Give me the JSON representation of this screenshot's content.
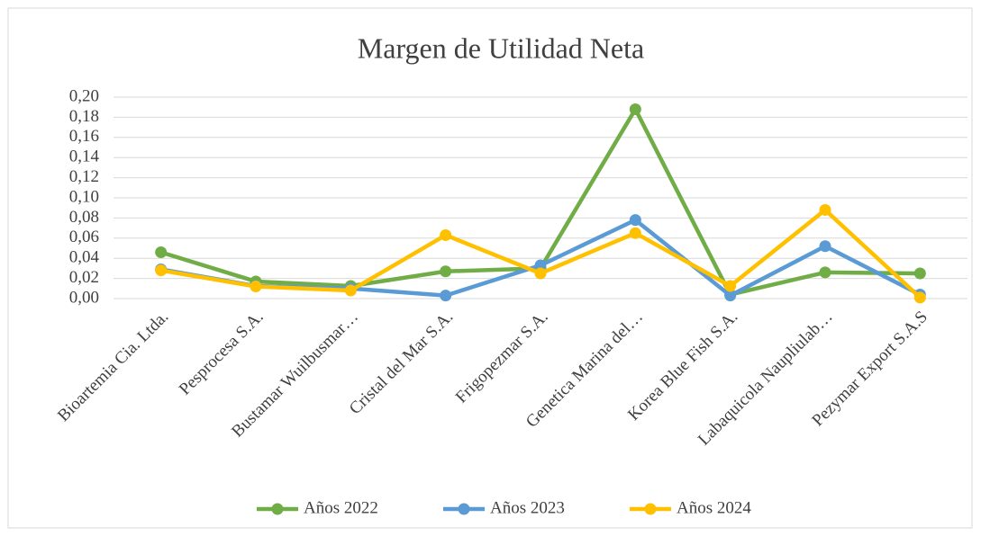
{
  "chart_data": {
    "type": "line",
    "title": "Margen de Utilidad Neta",
    "categories": [
      "Bioartemia Cia. Ltda.",
      "Pesprocesa S.A.",
      "Bustamar Wuilbusmar…",
      "Cristal del Mar S.A.",
      "Frigopezmar S.A.",
      "Genetica Marina del…",
      "Korea Blue Fish S.A.",
      "Labaquicola Naupliulab…",
      "Pezymar Export S.A.S"
    ],
    "series": [
      {
        "name": "Años 2022",
        "color": "#70ad47",
        "values": [
          0.046,
          0.017,
          0.0125,
          0.027,
          0.03,
          0.188,
          0.004,
          0.026,
          0.025
        ]
      },
      {
        "name": "Años 2023",
        "color": "#5b9bd5",
        "values": [
          0.029,
          0.0125,
          0.01,
          0.003,
          0.033,
          0.078,
          0.003,
          0.052,
          0.004
        ]
      },
      {
        "name": "Años 2024",
        "color": "#ffc000",
        "values": [
          0.028,
          0.012,
          0.008,
          0.063,
          0.025,
          0.065,
          0.0125,
          0.088,
          0.001
        ]
      }
    ],
    "ylim": [
      0,
      0.2
    ],
    "yticks": [
      {
        "value": 0,
        "label": "0,00"
      },
      {
        "value": 0.02,
        "label": "0,02"
      },
      {
        "value": 0.04,
        "label": "0,04"
      },
      {
        "value": 0.06,
        "label": "0,06"
      },
      {
        "value": 0.08,
        "label": "0,08"
      },
      {
        "value": 0.1,
        "label": "0,10"
      },
      {
        "value": 0.12,
        "label": "0,12"
      },
      {
        "value": 0.14,
        "label": "0,14"
      },
      {
        "value": 0.16,
        "label": "0,16"
      },
      {
        "value": 0.18,
        "label": "0,18"
      },
      {
        "value": 0.2,
        "label": "0,20"
      }
    ],
    "grid": true,
    "legend": "bottom"
  }
}
